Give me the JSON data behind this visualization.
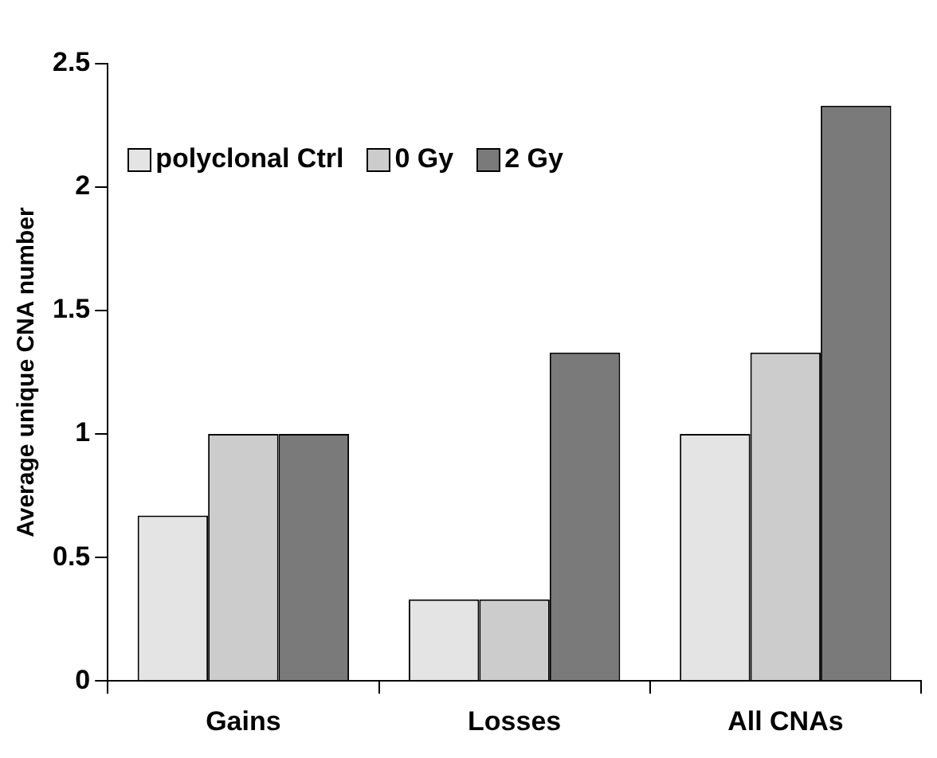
{
  "chart_data": {
    "type": "bar",
    "ylabel": "Average unique CNA number",
    "categories": [
      "Gains",
      "Losses",
      "All CNAs"
    ],
    "series": [
      {
        "name": "polyclonal Ctrl",
        "color": "#e4e4e4",
        "values": [
          0.67,
          0.33,
          1
        ]
      },
      {
        "name": "0 Gy",
        "color": "#cccccc",
        "values": [
          1,
          0.33,
          1.33
        ]
      },
      {
        "name": "2 Gy",
        "color": "#7a7a7a",
        "values": [
          1,
          1.33,
          2.33
        ]
      }
    ],
    "ylim": [
      0,
      2.5
    ],
    "yticks": [
      0,
      0.5,
      1,
      1.5,
      2,
      2.5
    ],
    "grid": false,
    "legend": "top left"
  }
}
